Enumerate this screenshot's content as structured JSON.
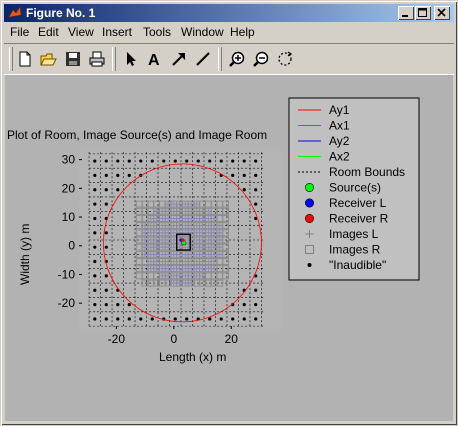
{
  "window": {
    "title": "Figure No. 1"
  },
  "menu": [
    "File",
    "Edit",
    "View",
    "Insert",
    "Tools",
    "Window",
    "Help"
  ],
  "toolbar": {
    "tools": [
      "new-file-icon",
      "open-folder-icon",
      "save-icon",
      "print-icon",
      "select-arrow-icon",
      "text-tool-icon",
      "arrow-tool-icon",
      "line-tool-icon",
      "zoom-in-icon",
      "zoom-out-icon",
      "rotate-icon"
    ]
  },
  "plot": {
    "title": "Plot of Room, Image Source(s) and Image Room",
    "xlabel": "Length (x) m",
    "ylabel": "Width (y) m"
  },
  "chart_data": {
    "type": "scatter",
    "title": "Plot of Room, Image Source(s) and Image Room",
    "xlabel": "Length (x) m",
    "ylabel": "Width (y) m",
    "xlim": [
      -33,
      38
    ],
    "ylim": [
      -29,
      33
    ],
    "xticks": [
      -20,
      0,
      20
    ],
    "yticks": [
      -20,
      -10,
      0,
      10,
      20,
      30
    ],
    "grid": false,
    "legend_placement": "right",
    "room": {
      "width": 4,
      "length": 5,
      "grid_origin_x": -29.5,
      "grid_origin_y": -28
    },
    "source": [
      3.5,
      1.0
    ],
    "receiver_left": [
      2.5,
      2.0
    ],
    "receiver_right": [
      3.2,
      2.0
    ],
    "audible_radius": 27.5,
    "circle_center": [
      3,
      1
    ],
    "image_x_range": [
      -12,
      18
    ],
    "image_y_range": [
      -13,
      15
    ],
    "series": [
      {
        "name": "Ay1",
        "color": "#ff0000"
      },
      {
        "name": "Ax1",
        "color": "#ff00ff"
      },
      {
        "name": "Ay2",
        "color": "#0000ff"
      },
      {
        "name": "Ax2",
        "color": "#00ff00"
      },
      {
        "name": "Room Bounds",
        "color": "#000000"
      },
      {
        "name": "Source(s)",
        "color": "#00ff00"
      },
      {
        "name": "Receiver L",
        "color": "#0000ff"
      },
      {
        "name": "Receiver R",
        "color": "#ff0000"
      },
      {
        "name": "Images L",
        "color": "#808080"
      },
      {
        "name": "Images R",
        "color": "#808080"
      },
      {
        "name": "\"Inaudible\"",
        "color": "#000000"
      }
    ]
  },
  "legend": [
    {
      "label": "Ay1",
      "kind": "line",
      "color": "#ff0000"
    },
    {
      "label": "Ax1",
      "kind": "line",
      "color": "#ff00ff"
    },
    {
      "label": "Ay2",
      "kind": "line",
      "color": "#0000ff"
    },
    {
      "label": "Ax2",
      "kind": "line",
      "color": "#00ff00"
    },
    {
      "label": "Room Bounds",
      "kind": "dash",
      "color": "#000000"
    },
    {
      "label": "Source(s)",
      "kind": "dot",
      "color": "#00ff00"
    },
    {
      "label": "Receiver L",
      "kind": "dot",
      "color": "#0000ff"
    },
    {
      "label": "Receiver R",
      "kind": "dot",
      "color": "#ff0000"
    },
    {
      "label": "Images L",
      "kind": "plus",
      "color": "#808080"
    },
    {
      "label": "Images R",
      "kind": "square",
      "color": "#808080"
    },
    {
      "label": "\"Inaudible\"",
      "kind": "small-dot",
      "color": "#000000"
    }
  ]
}
